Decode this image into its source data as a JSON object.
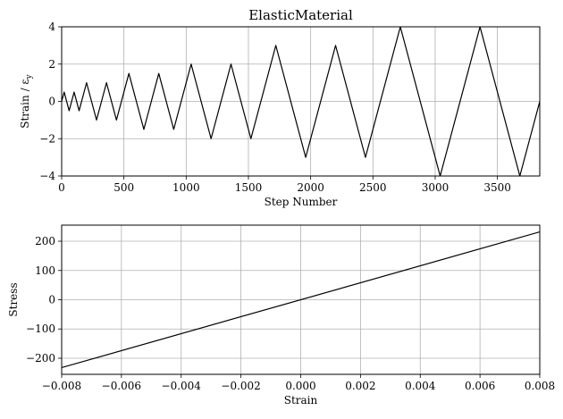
{
  "chart_data": [
    {
      "type": "line",
      "title": "ElasticMaterial",
      "xlabel": "Step Number",
      "ylabel": "Strain / ε",
      "ylabel_sub": "y",
      "xlim": [
        0,
        3840
      ],
      "ylim": [
        -4,
        4
      ],
      "grid": true,
      "xticks": [
        0,
        500,
        1000,
        1500,
        2000,
        2500,
        3000,
        3500
      ],
      "xtick_labels": [
        "0",
        "500",
        "1000",
        "1500",
        "2000",
        "2500",
        "3000",
        "3500"
      ],
      "yticks": [
        -4,
        -2,
        0,
        2,
        4
      ],
      "ytick_labels": [
        "−4",
        "−2",
        "0",
        "2",
        "4"
      ],
      "series": [
        {
          "x": [
            0,
            20,
            60,
            100,
            140,
            200,
            280,
            360,
            440,
            540,
            660,
            780,
            900,
            1040,
            1200,
            1360,
            1520,
            1720,
            1960,
            2200,
            2440,
            2720,
            3040,
            3360,
            3680,
            3840
          ],
          "y": [
            0,
            0.5,
            -0.5,
            0.5,
            -0.5,
            1,
            -1,
            1,
            -1,
            1.5,
            -1.5,
            1.5,
            -1.5,
            2,
            -2,
            2,
            -2,
            3,
            -3,
            3,
            -3,
            4,
            -4,
            4,
            -4,
            0
          ]
        }
      ]
    },
    {
      "type": "line",
      "title": "",
      "xlabel": "Strain",
      "ylabel": "Stress",
      "xlim": [
        -0.008,
        0.008
      ],
      "ylim": [
        -255,
        255
      ],
      "grid": true,
      "xticks": [
        -0.008,
        -0.006,
        -0.004,
        -0.002,
        0,
        0.002,
        0.004,
        0.006,
        0.008
      ],
      "xtick_labels": [
        "−0.008",
        "−0.006",
        "−0.004",
        "−0.002",
        "0.000",
        "0.002",
        "0.004",
        "0.006",
        "0.008"
      ],
      "yticks": [
        -200,
        -100,
        0,
        100,
        200
      ],
      "ytick_labels": [
        "−200",
        "−100",
        "0",
        "100",
        "200"
      ],
      "series": [
        {
          "x": [
            -0.008,
            0.008
          ],
          "y": [
            -232,
            232
          ]
        }
      ]
    }
  ]
}
